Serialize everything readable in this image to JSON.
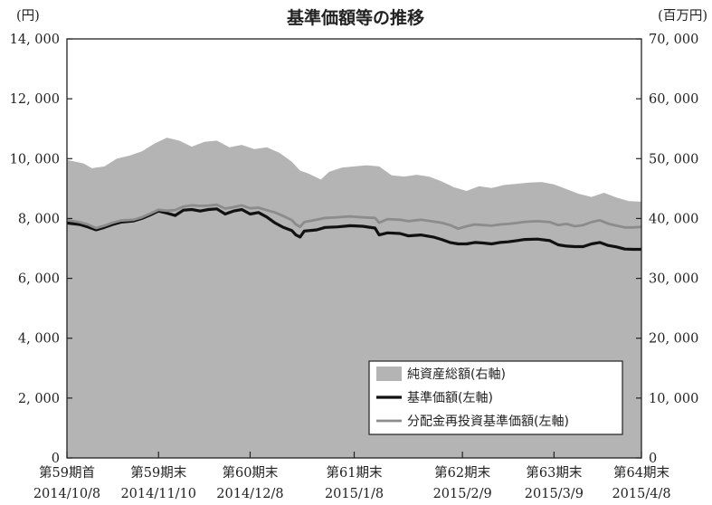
{
  "chart_data": {
    "type": "area",
    "title": "基準価額等の推移",
    "left_axis": {
      "unit": "(円)",
      "ylim": [
        0,
        14000
      ],
      "ticks": [
        {
          "value": 0,
          "label": "0"
        },
        {
          "value": 2000,
          "label": "2, 000"
        },
        {
          "value": 4000,
          "label": "4, 000"
        },
        {
          "value": 6000,
          "label": "6, 000"
        },
        {
          "value": 8000,
          "label": "8, 000"
        },
        {
          "value": 10000,
          "label": "10, 000"
        },
        {
          "value": 12000,
          "label": "12, 000"
        },
        {
          "value": 14000,
          "label": "14, 000"
        }
      ]
    },
    "right_axis": {
      "unit": "(百万円)",
      "ylim": [
        0,
        70000
      ],
      "ticks": [
        {
          "value": 0,
          "label": "0"
        },
        {
          "value": 10000,
          "label": "10, 000"
        },
        {
          "value": 20000,
          "label": "20, 000"
        },
        {
          "value": 30000,
          "label": "30, 000"
        },
        {
          "value": 40000,
          "label": "40, 000"
        },
        {
          "value": 50000,
          "label": "50, 000"
        },
        {
          "value": 60000,
          "label": "60, 000"
        },
        {
          "value": 70000,
          "label": "70, 000"
        }
      ]
    },
    "x_axis": {
      "categories": [
        {
          "period": "第59期首",
          "date": "2014/10/8"
        },
        {
          "period": "第59期末",
          "date": "2014/11/10"
        },
        {
          "period": "第60期末",
          "date": "2014/12/8"
        },
        {
          "period": "第61期末",
          "date": "2015/1/8"
        },
        {
          "period": "第62期末",
          "date": "2015/2/9"
        },
        {
          "period": "第63期末",
          "date": "2015/3/9"
        },
        {
          "period": "第64期末",
          "date": "2015/4/8"
        }
      ]
    },
    "legend": {
      "placement": "bottom-right",
      "entries": [
        {
          "label": "純資産総額(右軸)",
          "color": "#b4b4b4",
          "kind": "area"
        },
        {
          "label": "基準価額(左軸)",
          "color": "#111111",
          "kind": "line"
        },
        {
          "label": "分配金再投資基準価額(左軸)",
          "color": "#8c8c8c",
          "kind": "line"
        }
      ]
    },
    "series": [
      {
        "name": "純資産総額(右軸)",
        "axis": "right",
        "color": "#b4b4b4",
        "points": [
          [
            0,
            49800
          ],
          [
            4,
            49200
          ],
          [
            6,
            48400
          ],
          [
            9,
            48700
          ],
          [
            12,
            50000
          ],
          [
            15,
            50500
          ],
          [
            18,
            51200
          ],
          [
            21,
            52500
          ],
          [
            24,
            53500
          ],
          [
            27,
            53000
          ],
          [
            30,
            52000
          ],
          [
            33,
            52800
          ],
          [
            36,
            53000
          ],
          [
            39,
            51900
          ],
          [
            42,
            52300
          ],
          [
            45,
            51600
          ],
          [
            48,
            51900
          ],
          [
            51,
            51000
          ],
          [
            54,
            49500
          ],
          [
            56,
            48000
          ],
          [
            58,
            47500
          ],
          [
            61,
            46500
          ],
          [
            63,
            47800
          ],
          [
            66,
            48500
          ],
          [
            69,
            48700
          ],
          [
            72,
            48900
          ],
          [
            75,
            48700
          ],
          [
            78,
            47200
          ],
          [
            81,
            47000
          ],
          [
            84,
            47300
          ],
          [
            87,
            47000
          ],
          [
            90,
            46200
          ],
          [
            93,
            45200
          ],
          [
            96,
            44600
          ],
          [
            99,
            45400
          ],
          [
            102,
            45100
          ],
          [
            105,
            45600
          ],
          [
            108,
            45800
          ],
          [
            111,
            46000
          ],
          [
            114,
            46100
          ],
          [
            117,
            45700
          ],
          [
            120,
            44900
          ],
          [
            123,
            44100
          ],
          [
            126,
            43600
          ],
          [
            129,
            44300
          ],
          [
            132,
            43500
          ],
          [
            135,
            42900
          ],
          [
            138,
            42800
          ]
        ]
      },
      {
        "name": "基準価額(左軸)",
        "axis": "left",
        "color": "#111111",
        "points": [
          [
            0,
            7850
          ],
          [
            3,
            7800
          ],
          [
            5,
            7720
          ],
          [
            7,
            7620
          ],
          [
            9,
            7700
          ],
          [
            11,
            7800
          ],
          [
            13,
            7880
          ],
          [
            16,
            7920
          ],
          [
            18,
            8000
          ],
          [
            20,
            8120
          ],
          [
            22,
            8250
          ],
          [
            24,
            8180
          ],
          [
            26,
            8100
          ],
          [
            28,
            8280
          ],
          [
            30,
            8300
          ],
          [
            32,
            8250
          ],
          [
            34,
            8300
          ],
          [
            36,
            8320
          ],
          [
            38,
            8150
          ],
          [
            40,
            8250
          ],
          [
            42,
            8300
          ],
          [
            44,
            8150
          ],
          [
            46,
            8200
          ],
          [
            48,
            8050
          ],
          [
            50,
            7850
          ],
          [
            52,
            7700
          ],
          [
            54,
            7600
          ],
          [
            55,
            7450
          ],
          [
            56,
            7380
          ],
          [
            57,
            7580
          ],
          [
            60,
            7620
          ],
          [
            62,
            7700
          ],
          [
            65,
            7720
          ],
          [
            68,
            7760
          ],
          [
            71,
            7740
          ],
          [
            74,
            7680
          ],
          [
            75,
            7450
          ],
          [
            77,
            7520
          ],
          [
            80,
            7500
          ],
          [
            82,
            7420
          ],
          [
            85,
            7450
          ],
          [
            88,
            7380
          ],
          [
            90,
            7300
          ],
          [
            92,
            7200
          ],
          [
            94,
            7150
          ],
          [
            96,
            7150
          ],
          [
            98,
            7200
          ],
          [
            100,
            7180
          ],
          [
            102,
            7150
          ],
          [
            104,
            7200
          ],
          [
            106,
            7220
          ],
          [
            108,
            7260
          ],
          [
            110,
            7300
          ],
          [
            113,
            7310
          ],
          [
            116,
            7260
          ],
          [
            118,
            7120
          ],
          [
            120,
            7080
          ],
          [
            122,
            7060
          ],
          [
            124,
            7060
          ],
          [
            126,
            7150
          ],
          [
            128,
            7200
          ],
          [
            130,
            7100
          ],
          [
            132,
            7050
          ],
          [
            134,
            6980
          ],
          [
            136,
            6970
          ],
          [
            138,
            6970
          ]
        ]
      },
      {
        "name": "分配金再投資基準価額(左軸)",
        "axis": "left",
        "color": "#8c8c8c",
        "points": [
          [
            0,
            7950
          ],
          [
            3,
            7880
          ],
          [
            5,
            7800
          ],
          [
            7,
            7680
          ],
          [
            9,
            7760
          ],
          [
            11,
            7860
          ],
          [
            13,
            7930
          ],
          [
            16,
            7960
          ],
          [
            18,
            8040
          ],
          [
            20,
            8160
          ],
          [
            22,
            8290
          ],
          [
            24,
            8260
          ],
          [
            26,
            8280
          ],
          [
            28,
            8400
          ],
          [
            30,
            8440
          ],
          [
            32,
            8420
          ],
          [
            34,
            8430
          ],
          [
            36,
            8460
          ],
          [
            38,
            8330
          ],
          [
            40,
            8380
          ],
          [
            42,
            8440
          ],
          [
            44,
            8340
          ],
          [
            46,
            8360
          ],
          [
            48,
            8280
          ],
          [
            50,
            8200
          ],
          [
            52,
            8080
          ],
          [
            54,
            7950
          ],
          [
            55,
            7800
          ],
          [
            56,
            7720
          ],
          [
            57,
            7880
          ],
          [
            60,
            7960
          ],
          [
            62,
            8020
          ],
          [
            65,
            8040
          ],
          [
            68,
            8070
          ],
          [
            71,
            8040
          ],
          [
            74,
            8020
          ],
          [
            75,
            7860
          ],
          [
            77,
            7980
          ],
          [
            80,
            7960
          ],
          [
            82,
            7910
          ],
          [
            85,
            7960
          ],
          [
            88,
            7900
          ],
          [
            90,
            7860
          ],
          [
            92,
            7780
          ],
          [
            94,
            7660
          ],
          [
            96,
            7740
          ],
          [
            98,
            7800
          ],
          [
            100,
            7780
          ],
          [
            102,
            7760
          ],
          [
            104,
            7800
          ],
          [
            106,
            7820
          ],
          [
            108,
            7850
          ],
          [
            110,
            7890
          ],
          [
            113,
            7910
          ],
          [
            116,
            7880
          ],
          [
            118,
            7780
          ],
          [
            120,
            7820
          ],
          [
            122,
            7740
          ],
          [
            124,
            7780
          ],
          [
            126,
            7880
          ],
          [
            128,
            7940
          ],
          [
            130,
            7830
          ],
          [
            132,
            7760
          ],
          [
            134,
            7700
          ],
          [
            136,
            7700
          ],
          [
            138,
            7720
          ]
        ]
      }
    ],
    "x_range": [
      0,
      138
    ],
    "category_positions": [
      0,
      22,
      44,
      69,
      95,
      117,
      138
    ],
    "grid": false
  }
}
